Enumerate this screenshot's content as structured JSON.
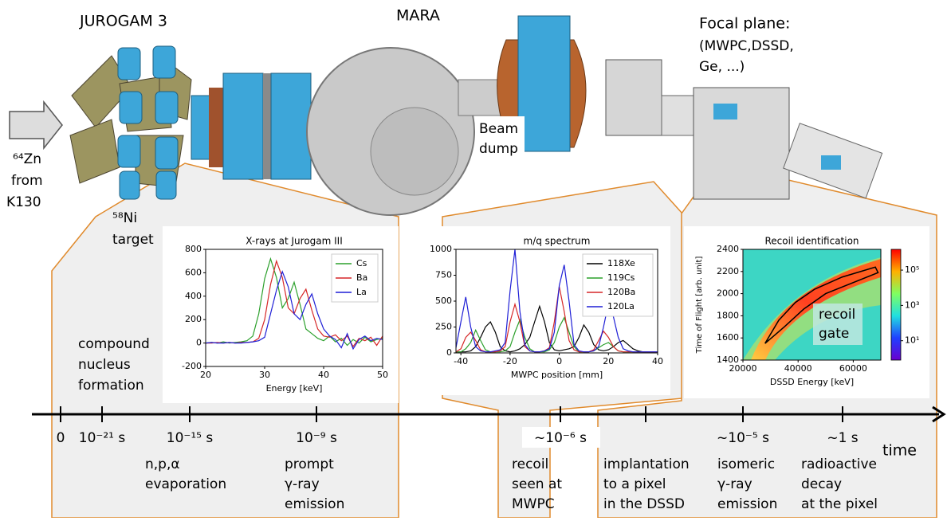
{
  "labels": {
    "jurogam": "JUROGAM 3",
    "mara": "MARA",
    "focal_plane": [
      "Focal plane:",
      "(MWPC,DSSD,",
      "Ge, ...)"
    ],
    "beam_dump": [
      "Beam",
      "dump"
    ],
    "beam": [
      "⁶⁴Zn",
      "from",
      "K130"
    ],
    "target": [
      "⁵⁸Ni",
      "target"
    ],
    "compound": [
      "compound",
      "nucleus",
      "formation"
    ]
  },
  "timeline": {
    "axis_label": "time",
    "ticks": [
      "0",
      "10⁻²¹ s",
      "10⁻¹⁵ s",
      "10⁻⁹ s",
      "~10⁻⁶ s",
      "~10⁻⁵ s",
      "~1 s"
    ],
    "events": [
      [
        "n,p,α",
        "evaporation"
      ],
      [
        "prompt",
        "γ-ray",
        "emission"
      ],
      [
        "recoil",
        "seen at",
        "MWPC"
      ],
      [
        "implantation",
        "to a pixel",
        "in the DSSD"
      ],
      [
        "isomeric",
        "γ-ray",
        "emission"
      ],
      [
        "radioactive",
        "decay",
        "at the pixel"
      ]
    ]
  },
  "chart_data": [
    {
      "type": "line",
      "title": "X-rays at Jurogam III",
      "x_label": "Energy [keV]",
      "xlim": [
        20,
        50
      ],
      "xticks": [
        20,
        30,
        40,
        50
      ],
      "ylim": [
        -200,
        800
      ],
      "yticks": [
        -200,
        0,
        200,
        400,
        600,
        800
      ],
      "legend": "upper right",
      "x": [
        20,
        21,
        22,
        23,
        24,
        25,
        26,
        27,
        28,
        29,
        30,
        31,
        32,
        33,
        34,
        35,
        36,
        37,
        38,
        39,
        40,
        41,
        42,
        43,
        44,
        45,
        46,
        47,
        48,
        49,
        50
      ],
      "series": [
        {
          "name": "Cs",
          "color": "#2ca02c",
          "values": [
            0,
            5,
            0,
            10,
            0,
            5,
            10,
            20,
            60,
            250,
            550,
            720,
            560,
            300,
            380,
            520,
            330,
            120,
            80,
            40,
            20,
            60,
            10,
            40,
            -20,
            30,
            0,
            50,
            10,
            30,
            40
          ]
        },
        {
          "name": "Ba",
          "color": "#d62728",
          "values": [
            0,
            0,
            5,
            0,
            5,
            0,
            5,
            5,
            10,
            40,
            200,
            500,
            700,
            560,
            300,
            250,
            380,
            460,
            280,
            120,
            60,
            50,
            70,
            20,
            60,
            -30,
            40,
            20,
            50,
            -20,
            60
          ]
        },
        {
          "name": "La",
          "color": "#1f1fd6",
          "values": [
            0,
            5,
            0,
            0,
            5,
            0,
            0,
            5,
            10,
            20,
            50,
            250,
            450,
            610,
            480,
            250,
            200,
            330,
            420,
            250,
            120,
            60,
            30,
            -40,
            80,
            -50,
            30,
            60,
            20,
            40,
            30
          ]
        }
      ]
    },
    {
      "type": "line",
      "title": "m/q spectrum",
      "x_label": "MWPC position [mm]",
      "xlim": [
        -42,
        40
      ],
      "xticks": [
        -40,
        -20,
        0,
        20,
        40
      ],
      "ylim": [
        0,
        1000
      ],
      "yticks": [
        0,
        250,
        500,
        750,
        1000
      ],
      "legend": "upper right",
      "x": [
        -42,
        -40,
        -38,
        -36,
        -34,
        -32,
        -30,
        -28,
        -26,
        -24,
        -22,
        -20,
        -18,
        -16,
        -14,
        -12,
        -10,
        -8,
        -6,
        -4,
        -2,
        0,
        2,
        4,
        6,
        8,
        10,
        12,
        14,
        16,
        18,
        20,
        22,
        24,
        26,
        28,
        30,
        32,
        34,
        36,
        38,
        40
      ],
      "series": [
        {
          "name": "118Xe",
          "color": "#000000",
          "values": [
            10,
            10,
            10,
            20,
            60,
            150,
            250,
            300,
            200,
            60,
            20,
            10,
            20,
            40,
            80,
            150,
            300,
            450,
            300,
            100,
            30,
            20,
            30,
            40,
            60,
            150,
            270,
            200,
            80,
            30,
            20,
            30,
            60,
            100,
            120,
            80,
            40,
            20,
            10,
            10,
            10,
            10
          ]
        },
        {
          "name": "119Cs",
          "color": "#2ca02c",
          "values": [
            10,
            10,
            40,
            100,
            220,
            120,
            30,
            10,
            10,
            10,
            20,
            60,
            200,
            320,
            150,
            40,
            10,
            10,
            10,
            30,
            100,
            250,
            340,
            200,
            60,
            10,
            10,
            10,
            20,
            50,
            80,
            100,
            60,
            20,
            10,
            10,
            10,
            10,
            10,
            10,
            10,
            10
          ]
        },
        {
          "name": "120Ba",
          "color": "#d62728",
          "values": [
            10,
            40,
            150,
            200,
            120,
            30,
            10,
            10,
            10,
            20,
            60,
            300,
            470,
            300,
            60,
            20,
            10,
            10,
            20,
            50,
            300,
            640,
            400,
            120,
            30,
            10,
            10,
            10,
            30,
            120,
            210,
            150,
            60,
            20,
            10,
            10,
            10,
            10,
            10,
            10,
            10,
            10
          ]
        },
        {
          "name": "120La",
          "color": "#1f1fd6",
          "values": [
            50,
            300,
            540,
            250,
            60,
            20,
            10,
            10,
            20,
            30,
            100,
            600,
            1000,
            400,
            80,
            20,
            10,
            10,
            20,
            40,
            200,
            650,
            850,
            500,
            80,
            20,
            10,
            10,
            20,
            60,
            250,
            480,
            350,
            150,
            40,
            20,
            10,
            10,
            10,
            10,
            10,
            10
          ]
        }
      ]
    },
    {
      "type": "heatmap",
      "title": "Recoil identification",
      "x_label": "DSSD Energy [keV]",
      "y_label": "Time of Flight [arb. unit]",
      "xlim": [
        20000,
        70000
      ],
      "xticks": [
        20000,
        40000,
        60000
      ],
      "ylim": [
        1400,
        2400
      ],
      "yticks": [
        1400,
        1600,
        1800,
        2000,
        2200,
        2400
      ],
      "gate": {
        "x": [
          28000,
          33000,
          39000,
          46000,
          56000,
          68000,
          69000,
          60000,
          50000,
          42000,
          35000,
          28000
        ],
        "y": [
          1550,
          1760,
          1920,
          2040,
          2150,
          2240,
          2190,
          2100,
          2000,
          1860,
          1700,
          1550
        ]
      },
      "annotation": [
        "recoil",
        "gate"
      ],
      "colorbar": {
        "scale": "log",
        "lim": [
          0.8,
          1500000
        ],
        "ticks": [
          {
            "value": 10,
            "label": "10¹"
          },
          {
            "value": 1000,
            "label": "10³"
          },
          {
            "value": 100000,
            "label": "10⁵"
          }
        ]
      }
    }
  ]
}
